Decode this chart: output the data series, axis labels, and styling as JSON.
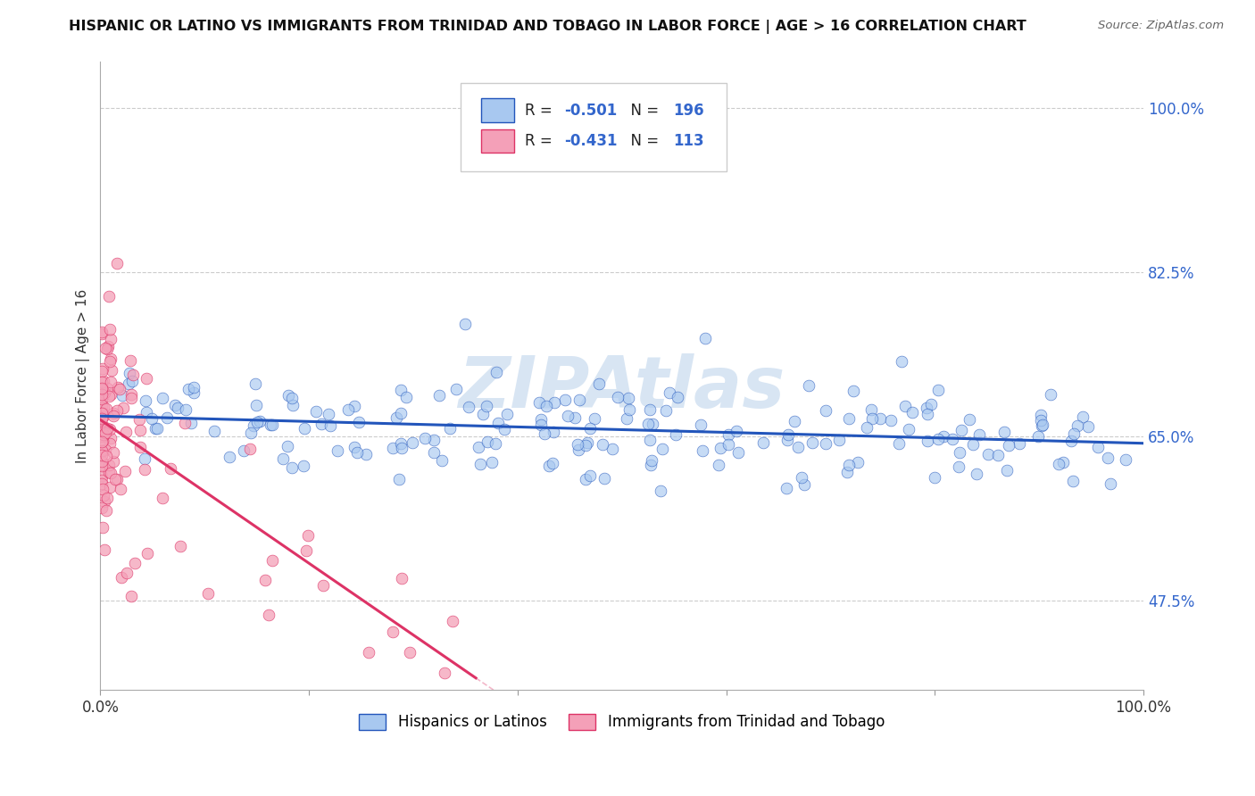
{
  "title": "HISPANIC OR LATINO VS IMMIGRANTS FROM TRINIDAD AND TOBAGO IN LABOR FORCE | AGE > 16 CORRELATION CHART",
  "source": "Source: ZipAtlas.com",
  "ylabel": "In Labor Force | Age > 16",
  "xlim": [
    0.0,
    1.0
  ],
  "ylim": [
    0.38,
    1.05
  ],
  "yticks": [
    0.475,
    0.65,
    0.825,
    1.0
  ],
  "ytick_labels": [
    "47.5%",
    "65.0%",
    "82.5%",
    "100.0%"
  ],
  "blue_R": -0.501,
  "blue_N": 196,
  "pink_R": -0.431,
  "pink_N": 113,
  "blue_color": "#a8c8f0",
  "pink_color": "#f4a0b8",
  "blue_line_color": "#2255bb",
  "pink_line_color": "#dd3366",
  "legend_label_blue": "Hispanics or Latinos",
  "legend_label_pink": "Immigrants from Trinidad and Tobago",
  "watermark": "ZIPAtlas",
  "background_color": "#ffffff",
  "grid_color": "#cccccc",
  "blue_line_x0": 0.0,
  "blue_line_y0": 0.672,
  "blue_line_x1": 1.0,
  "blue_line_y1": 0.643,
  "pink_line_x0": 0.0,
  "pink_line_y0": 0.668,
  "pink_line_x1": 0.36,
  "pink_line_y1": 0.393
}
